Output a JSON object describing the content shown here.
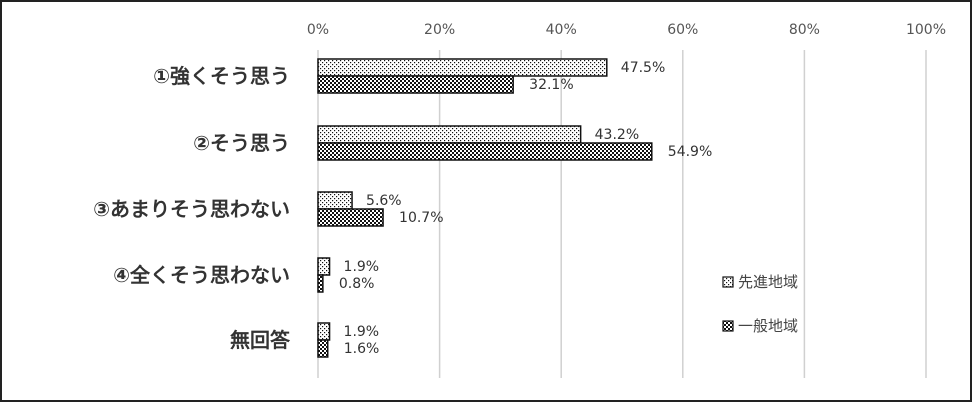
{
  "chart_data": {
    "type": "bar",
    "orientation": "horizontal",
    "categories": [
      "①強くそう思う",
      "②そう思う",
      "③あまりそう思わない",
      "④全くそう思わない",
      "無回答"
    ],
    "series": [
      {
        "name": "先進地域",
        "values": [
          47.5,
          43.2,
          5.6,
          1.9,
          1.9
        ],
        "labels": [
          "47.5%",
          "43.2%",
          "5.6%",
          "1.9%",
          "1.9%"
        ],
        "pattern": "dots"
      },
      {
        "name": "一般地域",
        "values": [
          32.1,
          54.9,
          10.7,
          0.8,
          1.6
        ],
        "labels": [
          "32.1%",
          "54.9%",
          "10.7%",
          "0.8%",
          "1.6%"
        ],
        "pattern": "checker"
      }
    ],
    "xlim": [
      0,
      100
    ],
    "xticks": [
      "0%",
      "20%",
      "40%",
      "60%",
      "80%",
      "100%"
    ],
    "grid": true,
    "legend_position": "right-inside",
    "colors": {
      "border": "#222222",
      "grid": "#d0d0d0",
      "bar_fg": "#111111",
      "bar_bg": "#ffffff"
    }
  }
}
